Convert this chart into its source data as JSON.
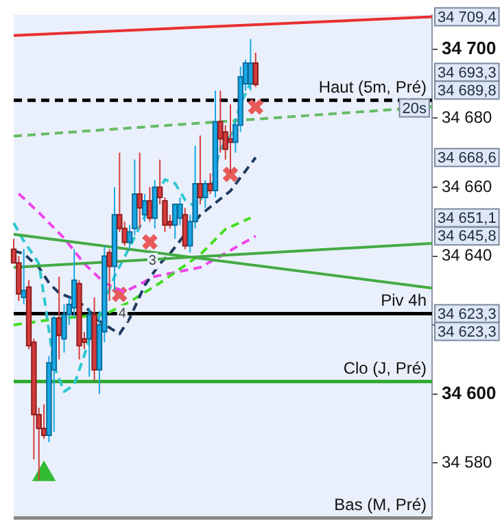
{
  "chart_data": {
    "type": "candlestick",
    "categories": [
      null,
      null,
      null,
      null,
      null,
      null,
      null,
      null,
      null,
      null,
      null,
      null,
      null,
      null,
      null,
      null,
      null,
      null,
      null,
      null,
      null,
      null,
      null,
      null,
      null,
      null,
      null,
      null,
      null,
      null,
      null,
      null,
      null,
      null,
      null,
      null,
      null,
      null,
      null,
      null,
      null,
      null,
      null,
      null,
      null,
      null,
      null,
      null,
      null,
      null,
      null,
      null,
      null,
      null,
      null,
      null,
      null,
      null,
      null,
      null,
      null,
      null,
      null,
      null,
      null,
      null,
      null,
      null,
      null,
      null,
      null,
      null,
      null,
      null,
      null,
      null,
      null,
      null,
      null,
      null,
      null,
      null,
      null,
      null
    ],
    "ohlc": [
      [
        34642,
        34645,
        34638,
        34638
      ],
      [
        34638,
        34640,
        34627,
        34629
      ],
      [
        34628,
        34642,
        34626,
        34630
      ],
      [
        34631,
        34633,
        34613,
        34614
      ],
      [
        34615,
        34616,
        34581,
        34594
      ],
      [
        34594,
        34596,
        34575,
        34590
      ],
      [
        34590,
        34597,
        34587,
        34588
      ],
      [
        34588,
        34611,
        34586,
        34609
      ],
      [
        34607,
        34623,
        34589,
        34622
      ],
      [
        34622,
        34634,
        34610,
        34617
      ],
      [
        34616,
        34626,
        34612,
        34623
      ],
      [
        34623,
        34628,
        34620,
        34626
      ],
      [
        34625,
        34642,
        34622,
        34633
      ],
      [
        34632,
        34633,
        34610,
        34614
      ],
      [
        34616,
        34618,
        34613,
        34615
      ],
      [
        34616,
        34625,
        34605,
        34623
      ],
      [
        34623,
        34628,
        34604,
        34607
      ],
      [
        34607,
        34624,
        34600,
        34620
      ],
      [
        34618,
        34643,
        34615,
        34640
      ],
      [
        34641,
        34642,
        34627,
        34637
      ],
      [
        34637,
        34660,
        34630,
        34652
      ],
      [
        34652,
        34670,
        34647,
        34648
      ],
      [
        34648,
        34650,
        34643,
        34644
      ],
      [
        34644,
        34649,
        34642,
        34647
      ],
      [
        34648,
        34668,
        34646,
        34658
      ],
      [
        34658,
        34670,
        34648,
        34654
      ],
      [
        34652,
        34658,
        34650,
        34656
      ],
      [
        34656,
        34660,
        34650,
        34651
      ],
      [
        34651,
        34662,
        34648,
        34660
      ],
      [
        34660,
        34668,
        34655,
        34657
      ],
      [
        34656,
        34657,
        34647,
        34649
      ],
      [
        34650,
        34652,
        34648,
        34649
      ],
      [
        34649,
        34655,
        34645,
        34655
      ],
      [
        34651,
        34657,
        34649,
        34655
      ],
      [
        34652,
        34654,
        34642,
        34643
      ],
      [
        34643,
        34652,
        34641,
        34650
      ],
      [
        34650,
        34672,
        34648,
        34661
      ],
      [
        34661,
        34675,
        34655,
        34657
      ],
      [
        34657,
        34662,
        34654,
        34661
      ],
      [
        34661,
        34664,
        34658,
        34659
      ],
      [
        34659,
        34688,
        34657,
        34679
      ],
      [
        34679,
        34688,
        34670,
        34674
      ],
      [
        34676,
        34678,
        34668,
        34671
      ],
      [
        34674,
        34684,
        34664,
        34673
      ],
      [
        34673,
        34680,
        34670,
        34678
      ],
      [
        34678,
        34695,
        34676,
        34692
      ],
      [
        34690,
        34697,
        34688,
        34696
      ],
      [
        34690,
        34703,
        34688,
        34696
      ],
      [
        34696,
        34699,
        34689,
        34689.8
      ],
      null,
      null,
      null,
      null,
      null,
      null,
      null,
      null,
      null,
      null,
      null,
      null,
      null,
      null,
      null,
      null,
      null,
      null,
      null,
      null,
      null,
      null,
      null,
      null,
      null,
      null,
      null,
      null,
      null,
      null,
      null,
      null,
      null,
      null,
      null
    ],
    "series": [
      {
        "type": "line",
        "color": "#e83030",
        "line_style": "solid",
        "values": [
          34704,
          null,
          null,
          null,
          null,
          null,
          null,
          null,
          null,
          null,
          null,
          null,
          null,
          null,
          null,
          null,
          null,
          null,
          null,
          null,
          null,
          null,
          null,
          null,
          null,
          null,
          null,
          null,
          null,
          null,
          null,
          null,
          null,
          null,
          null,
          null,
          null,
          null,
          null,
          null,
          null,
          null,
          null,
          null,
          null,
          null,
          null,
          null,
          null,
          null,
          null,
          null,
          null,
          null,
          null,
          null,
          null,
          null,
          null,
          null,
          null,
          null,
          null,
          null,
          null,
          null,
          null,
          null,
          null,
          null,
          null,
          null,
          null,
          null,
          null,
          null,
          null,
          null,
          null,
          null,
          null,
          null,
          null,
          34709.4
        ]
      },
      {
        "type": "line",
        "color": "#66bb66",
        "line_style": "dashed",
        "values": [
          34674.8,
          null,
          null,
          null,
          null,
          null,
          null,
          null,
          null,
          null,
          null,
          null,
          null,
          null,
          null,
          null,
          null,
          null,
          null,
          null,
          null,
          null,
          null,
          null,
          null,
          null,
          null,
          null,
          null,
          null,
          null,
          null,
          null,
          null,
          null,
          null,
          null,
          null,
          null,
          null,
          null,
          null,
          null,
          null,
          null,
          null,
          null,
          null,
          null,
          null,
          null,
          null,
          null,
          null,
          null,
          null,
          null,
          null,
          null,
          null,
          null,
          null,
          null,
          null,
          null,
          null,
          null,
          null,
          null,
          null,
          null,
          null,
          null,
          null,
          null,
          null,
          null,
          null,
          null,
          null,
          null,
          null,
          null,
          34683.3
        ]
      },
      {
        "type": "line",
        "color": "#44aa44",
        "line_style": "solid",
        "values": [
          34636.7,
          null,
          null,
          null,
          null,
          null,
          null,
          null,
          null,
          null,
          null,
          null,
          null,
          null,
          null,
          null,
          null,
          null,
          null,
          null,
          null,
          null,
          null,
          null,
          null,
          null,
          null,
          null,
          null,
          null,
          null,
          null,
          null,
          null,
          null,
          null,
          null,
          null,
          null,
          null,
          null,
          null,
          null,
          null,
          null,
          null,
          null,
          null,
          null,
          null,
          null,
          null,
          null,
          null,
          null,
          null,
          null,
          null,
          null,
          null,
          null,
          null,
          null,
          null,
          null,
          null,
          null,
          null,
          null,
          null,
          null,
          null,
          null,
          null,
          null,
          null,
          null,
          null,
          null,
          null,
          null,
          null,
          null,
          34643.7
        ]
      },
      {
        "type": "line",
        "color": "#44aa44",
        "line_style": "solid",
        "values": [
          34646.3,
          null,
          null,
          null,
          null,
          null,
          null,
          null,
          null,
          null,
          null,
          null,
          null,
          null,
          null,
          null,
          null,
          null,
          null,
          null,
          null,
          null,
          null,
          null,
          null,
          null,
          null,
          null,
          null,
          null,
          null,
          null,
          null,
          null,
          null,
          null,
          null,
          null,
          null,
          null,
          null,
          null,
          null,
          null,
          null,
          null,
          null,
          null,
          null,
          null,
          null,
          null,
          null,
          null,
          null,
          null,
          null,
          null,
          null,
          null,
          null,
          null,
          null,
          null,
          null,
          null,
          null,
          null,
          null,
          null,
          null,
          null,
          null,
          null,
          null,
          null,
          null,
          null,
          null,
          null,
          null,
          null,
          null,
          34630.7
        ]
      },
      {
        "type": "line",
        "color": "#2ec8d0",
        "line_style": "dashed",
        "values": [
          34649.6,
          null,
          34644.4,
          null,
          null,
          34637.8,
          34628.5,
          null,
          34608.1,
          null,
          34600.7,
          null,
          34602.6,
          null,
          null,
          34615.6,
          null,
          34623,
          null,
          null,
          34634.1,
          null,
          null,
          34642.6,
          null,
          null,
          null,
          34654.4,
          null,
          null,
          34662.2,
          null,
          34661.1,
          null,
          34656.3,
          null,
          34654.4,
          null,
          null,
          34660,
          null,
          34671.1,
          null,
          34674.8,
          null,
          34684.1,
          null,
          null,
          34693.3,
          null,
          null,
          null,
          null,
          null,
          null,
          null,
          null,
          null,
          null,
          null,
          null,
          null,
          null,
          null,
          null,
          null,
          null,
          null,
          null,
          null,
          null,
          null,
          null,
          null,
          null,
          null,
          null,
          null,
          null,
          null,
          null,
          null,
          null,
          null
        ]
      },
      {
        "type": "line",
        "color": "#1f3a60",
        "line_style": "dashed",
        "values": [
          34641.5,
          null,
          34640.7,
          null,
          null,
          34636.7,
          null,
          34632.2,
          null,
          34629.3,
          null,
          34628.1,
          null,
          null,
          34625.6,
          null,
          null,
          34621.1,
          null,
          null,
          null,
          34617.4,
          null,
          34621.9,
          null,
          null,
          34631.5,
          null,
          null,
          34637.8,
          null,
          34640.7,
          null,
          null,
          null,
          null,
          null,
          34651.9,
          null,
          null,
          null,
          null,
          null,
          34658.9,
          null,
          null,
          null,
          null,
          34668.6,
          null,
          null,
          null,
          null,
          null,
          null,
          null,
          null,
          null,
          null,
          null,
          null,
          null,
          null,
          null,
          null,
          null,
          null,
          null,
          null,
          null,
          null,
          null,
          null,
          null,
          null,
          null,
          null,
          null,
          null,
          null,
          null,
          null,
          null,
          null
        ]
      },
      {
        "type": "line",
        "color": "#44dd22",
        "line_style": "dashed",
        "values": [
          34620,
          null,
          null,
          null,
          null,
          null,
          null,
          null,
          null,
          34621.9,
          null,
          null,
          null,
          null,
          null,
          null,
          null,
          null,
          34623,
          null,
          null,
          null,
          null,
          34626.7,
          null,
          null,
          null,
          null,
          null,
          34632.2,
          null,
          null,
          null,
          null,
          null,
          null,
          null,
          34640.4,
          null,
          null,
          null,
          null,
          34647.8,
          null,
          null,
          null,
          null,
          34651.1,
          null,
          null,
          null,
          null,
          null,
          null,
          null,
          null,
          null,
          null,
          null,
          null,
          null,
          null,
          null,
          null,
          null,
          null,
          null,
          null,
          null,
          null,
          null,
          null,
          null,
          null,
          null,
          null,
          null,
          null,
          null,
          null,
          null,
          null,
          null,
          null
        ]
      },
      {
        "type": "line",
        "color": "#ee44ee",
        "line_style": "dashed",
        "values": [
          null,
          34658.1,
          null,
          null,
          null,
          34652.6,
          null,
          null,
          null,
          null,
          34645.2,
          null,
          null,
          null,
          34637.8,
          null,
          null,
          null,
          34632.2,
          null,
          null,
          null,
          34629.6,
          null,
          null,
          null,
          null,
          null,
          34634.1,
          null,
          null,
          null,
          null,
          null,
          null,
          null,
          null,
          34636.7,
          null,
          null,
          null,
          null,
          null,
          null,
          null,
          null,
          null,
          null,
          34645.8,
          null,
          null,
          null,
          null,
          null,
          null,
          null,
          null,
          null,
          null,
          null,
          null,
          null,
          null,
          null,
          null,
          null,
          null,
          null,
          null,
          null,
          null,
          null,
          null,
          null,
          null,
          null,
          null,
          null,
          null,
          null,
          null,
          null,
          null,
          null
        ]
      },
      {
        "type": "scatter",
        "marker": "cross",
        "color": "#e85a5a",
        "values": [
          null,
          null,
          null,
          null,
          null,
          null,
          null,
          null,
          null,
          null,
          null,
          null,
          null,
          null,
          null,
          null,
          null,
          null,
          null,
          null,
          null,
          34628.9,
          null,
          null,
          null,
          null,
          null,
          34644.1,
          null,
          null,
          null,
          null,
          null,
          null,
          null,
          null,
          null,
          null,
          null,
          null,
          null,
          null,
          null,
          34663.7,
          null,
          null,
          null,
          null,
          34683.3,
          null,
          null,
          null,
          null,
          null,
          null,
          null,
          null,
          null,
          null,
          null,
          null,
          null,
          null,
          null,
          null,
          null,
          null,
          null,
          null,
          null,
          null,
          null,
          null,
          null,
          null,
          null,
          null,
          null,
          null,
          null,
          null,
          null,
          null,
          null
        ]
      },
      {
        "type": "scatter",
        "marker": "triangle",
        "color": "#33bb33",
        "values": [
          null,
          null,
          null,
          null,
          null,
          null,
          34576.7,
          null,
          null,
          null,
          null,
          null,
          null,
          null,
          null,
          null,
          null,
          null,
          null,
          null,
          null,
          null,
          null,
          null,
          null,
          null,
          null,
          null,
          null,
          null,
          null,
          null,
          null,
          null,
          null,
          null,
          null,
          null,
          null,
          null,
          null,
          null,
          null,
          null,
          null,
          null,
          null,
          null,
          null,
          null,
          null,
          null,
          null,
          null,
          null,
          null,
          null,
          null,
          null,
          null,
          null,
          null,
          null,
          null,
          null,
          null,
          null,
          null,
          null,
          null,
          null,
          null,
          null,
          null,
          null,
          null,
          null,
          null,
          null,
          null,
          null,
          null,
          null,
          null
        ]
      }
    ],
    "ylim": [
      34564,
      34710
    ],
    "yticks": [
      {
        "value": 34580,
        "label": "34 580"
      },
      {
        "value": 34600,
        "label": "34 600"
      },
      {
        "value": 34620,
        "label": null
      },
      {
        "value": 34640,
        "label": "34 640"
      },
      {
        "value": 34660,
        "label": "34 660"
      },
      {
        "value": 34680,
        "label": "34 680"
      },
      {
        "value": 34700,
        "label": "34 700"
      }
    ],
    "tick_labels": "y",
    "ref_lines": [
      {
        "axis": "y",
        "value": 34685.2,
        "label": "Haut (5m, Pré)",
        "color": "#000000",
        "line_style": "dashed"
      },
      {
        "axis": "y",
        "value": 34623.3,
        "label": "Piv 4h",
        "color": "#000000",
        "line_style": "solid"
      },
      {
        "axis": "y",
        "value": 34603.6,
        "label": "Clo (J, Pré)",
        "color": "#33aa33",
        "line_style": "solid"
      },
      {
        "axis": "y",
        "value": 34564,
        "label": "Bas (M, Pré)",
        "color": "#888888",
        "line_style": "solid"
      }
    ],
    "annotations": [
      "34 709,4",
      "34 693,3",
      "34 689,8",
      "20s",
      "34 668,6",
      "34 651,1",
      "34 645,8",
      "34 623,3",
      "34 623,3",
      {
        "text": "4",
        "y": 34628.9
      },
      {
        "text": "3",
        "y": 34644.1
      }
    ]
  }
}
